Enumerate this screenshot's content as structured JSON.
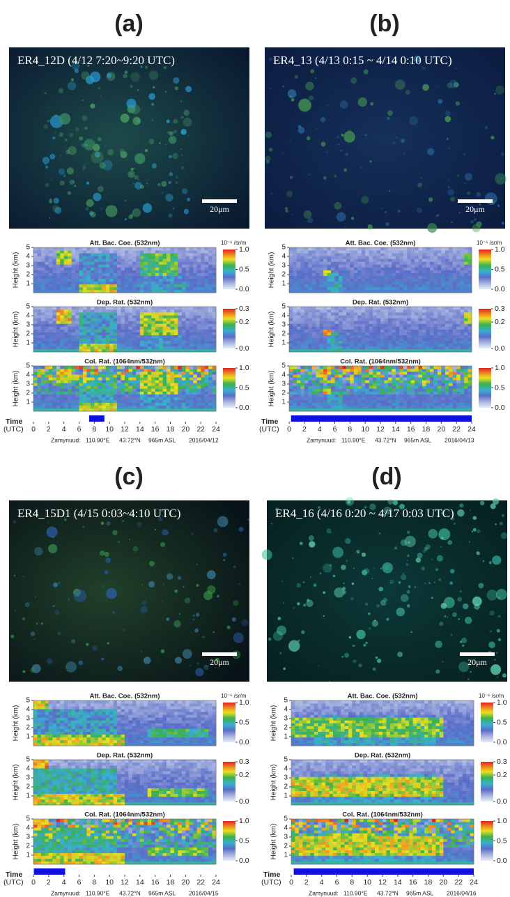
{
  "common": {
    "subplots": [
      {
        "title": "Att. Bac. Coe. (532nm)",
        "clim": [
          0,
          1
        ],
        "cticks": [
          {
            "value": 0,
            "label": "0.0"
          },
          0.5,
          {
            "value": 1,
            "label": "1.0"
          }
        ]
      },
      {
        "title": "Dep. Rat. (532nm)",
        "clim": [
          0,
          0.3
        ],
        "cticks": [
          {
            "value": 0,
            "label": "0.0"
          },
          0.2,
          0.3
        ]
      },
      {
        "title": "Col. Rat. (1064nm/532nm)",
        "clim": [
          0,
          1
        ],
        "cticks": [
          {
            "value": 0,
            "label": "0.0"
          },
          0.5,
          {
            "value": 1,
            "label": "1.0"
          }
        ]
      }
    ],
    "cbar_unit": "10⁻⁶ /sr/m",
    "ylabel": "Height (km)",
    "ylim": [
      0,
      5
    ],
    "yticks": [
      1,
      2,
      3,
      4,
      5
    ],
    "xlim": [
      0,
      24
    ],
    "xticks": [
      0,
      2,
      4,
      6,
      8,
      10,
      12,
      14,
      16,
      18,
      20,
      22,
      24
    ],
    "xlabel": [
      "Time",
      "(UTC)"
    ],
    "site": "Zamynuud:",
    "lon": "110.90°E",
    "lat": "43.72°N",
    "alt": "965m ASL"
  },
  "panels": [
    {
      "letter": "(a)",
      "caption": "ER4_12D (4/12 7:20~9:20 UTC)",
      "scale_label": "20μm",
      "date": "2016/04/12",
      "sample": [
        7.33,
        9.33
      ]
    },
    {
      "letter": "(b)",
      "caption": "ER4_13 (4/13 0:15 ~ 4/14 0:10 UTC)",
      "scale_label": "20μm",
      "date": "2016/04/13",
      "sample": [
        0.25,
        24
      ]
    },
    {
      "letter": "(c)",
      "caption": "ER4_15D1 (4/15 0:03~4:10 UTC)",
      "scale_label": "20μm",
      "date": "2016/04/15",
      "sample": [
        0.05,
        4.17
      ]
    },
    {
      "letter": "(d)",
      "caption": "ER4_16 (4/16 0:20 ~ 4/17 0:03 UTC)",
      "scale_label": "20μm",
      "date": "2016/04/16",
      "sample": [
        0.33,
        24
      ]
    }
  ]
}
